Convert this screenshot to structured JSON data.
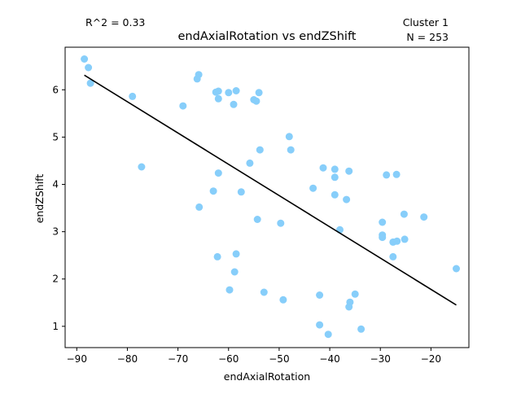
{
  "chart_data": {
    "type": "scatter",
    "title": "endAxialRotation vs endZShift",
    "xlabel": "endAxialRotation",
    "ylabel": "endZShift",
    "xlim": [
      -92.3,
      -12.5
    ],
    "ylim": [
      0.55,
      6.9
    ],
    "xticks": [
      -90,
      -80,
      -70,
      -60,
      -50,
      -40,
      -30,
      -20
    ],
    "yticks": [
      1,
      2,
      3,
      4,
      5,
      6
    ],
    "grid": false,
    "annotation_left": "R^2 = 0.33",
    "annotation_right_line1": "Cluster 1",
    "annotation_right_line2": "N = 253",
    "point_color": "#87CEFA",
    "line_color": "#000000",
    "points": [
      [
        -88.5,
        6.65
      ],
      [
        -87.7,
        6.47
      ],
      [
        -87.3,
        6.14
      ],
      [
        -79.0,
        5.86
      ],
      [
        -77.2,
        4.37
      ],
      [
        -69.0,
        5.66
      ],
      [
        -66.2,
        6.23
      ],
      [
        -65.9,
        6.32
      ],
      [
        -65.8,
        3.52
      ],
      [
        -63.0,
        3.86
      ],
      [
        -62.5,
        5.95
      ],
      [
        -62.0,
        5.97
      ],
      [
        -62.0,
        5.81
      ],
      [
        -62.0,
        4.24
      ],
      [
        -62.2,
        2.47
      ],
      [
        -60.0,
        5.94
      ],
      [
        -59.8,
        1.77
      ],
      [
        -59.0,
        5.69
      ],
      [
        -58.5,
        5.98
      ],
      [
        -58.5,
        2.53
      ],
      [
        -58.8,
        2.15
      ],
      [
        -57.5,
        3.84
      ],
      [
        -55.8,
        4.45
      ],
      [
        -55.0,
        5.79
      ],
      [
        -54.5,
        5.76
      ],
      [
        -54.0,
        5.94
      ],
      [
        -53.8,
        4.73
      ],
      [
        -54.3,
        3.26
      ],
      [
        -53.0,
        1.72
      ],
      [
        -49.7,
        3.18
      ],
      [
        -49.2,
        1.56
      ],
      [
        -48.0,
        5.01
      ],
      [
        -47.7,
        4.73
      ],
      [
        -43.3,
        3.92
      ],
      [
        -42.0,
        1.66
      ],
      [
        -42.0,
        1.03
      ],
      [
        -41.3,
        4.35
      ],
      [
        -40.3,
        0.83
      ],
      [
        -39.0,
        4.32
      ],
      [
        -39.0,
        4.15
      ],
      [
        -39.0,
        3.78
      ],
      [
        -38.0,
        3.04
      ],
      [
        -36.7,
        3.68
      ],
      [
        -36.2,
        4.28
      ],
      [
        -36.0,
        1.51
      ],
      [
        -36.2,
        1.41
      ],
      [
        -35.0,
        1.68
      ],
      [
        -33.8,
        0.94
      ],
      [
        -29.6,
        3.2
      ],
      [
        -29.6,
        2.93
      ],
      [
        -29.6,
        2.88
      ],
      [
        -28.8,
        4.2
      ],
      [
        -27.5,
        2.47
      ],
      [
        -27.5,
        2.78
      ],
      [
        -26.8,
        4.21
      ],
      [
        -26.7,
        2.8
      ],
      [
        -25.3,
        3.37
      ],
      [
        -25.2,
        2.84
      ],
      [
        -21.4,
        3.31
      ],
      [
        -15.0,
        2.22
      ]
    ],
    "fit_line": {
      "x": [
        -88.5,
        -15.0
      ],
      "y": [
        6.31,
        1.45
      ]
    }
  }
}
